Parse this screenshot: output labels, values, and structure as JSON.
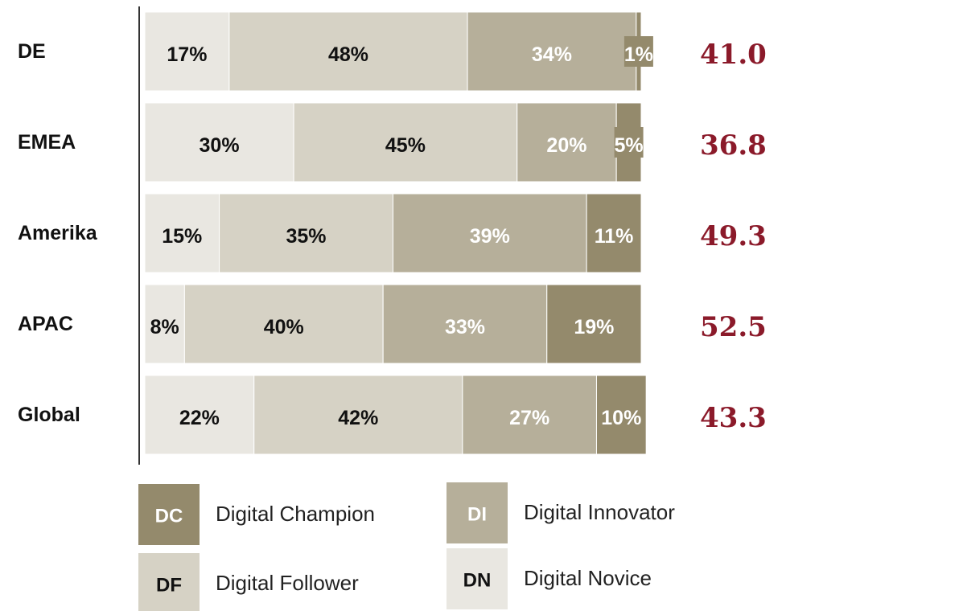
{
  "chart_data": {
    "type": "stacked-bar-horizontal",
    "categories": [
      "DE",
      "EMEA",
      "Amerika",
      "APAC",
      "Global"
    ],
    "xlim": [
      0,
      100
    ],
    "series": [
      {
        "name": "Digital Novice",
        "abbr": "DN",
        "color": "#e9e7e1",
        "text_color": "#111111",
        "values": [
          17,
          30,
          15,
          8,
          22
        ],
        "value_labels": [
          "17%",
          "30%",
          "15%",
          "8%",
          "22%"
        ]
      },
      {
        "name": "Digital Follower",
        "abbr": "DF",
        "color": "#d6d2c5",
        "text_color": "#111111",
        "values": [
          48,
          45,
          35,
          40,
          42
        ],
        "value_labels": [
          "48%",
          "45%",
          "35%",
          "40%",
          "42%"
        ]
      },
      {
        "name": "Digital Innovator",
        "abbr": "DI",
        "color": "#b6af9a",
        "text_color": "#ffffff",
        "values": [
          34,
          20,
          39,
          33,
          27
        ],
        "value_labels": [
          "34%",
          "20%",
          "39%",
          "33%",
          "27%"
        ]
      },
      {
        "name": "Digital Champion",
        "abbr": "DC",
        "color": "#948a6c",
        "text_color": "#ffffff",
        "values": [
          1,
          5,
          11,
          19,
          10
        ],
        "value_labels": [
          "1%",
          "5%",
          "11%",
          "19%",
          "10%"
        ]
      }
    ],
    "scores": {
      "values": [
        41.0,
        36.8,
        49.3,
        52.5,
        43.3
      ],
      "value_labels": [
        "41.0",
        "36.8",
        "49.3",
        "52.5",
        "43.3"
      ],
      "color": "#8b1a2a"
    }
  }
}
